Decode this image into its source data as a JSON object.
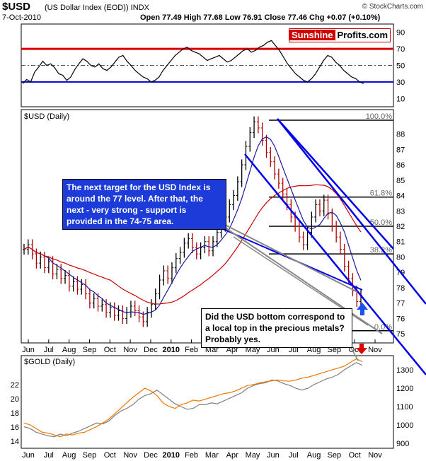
{
  "header": {
    "ticker": "$USD",
    "name": "(US Dollar Index (EOD)) INDX",
    "date": "7-Oct-2010",
    "ohlc": "Open 77.49  High 77.68  Low 76.91  Close 77.46  Chg +0.07 (+0.10%)",
    "credit": "© StockCharts.com"
  },
  "logo": {
    "part1": "Sunshine",
    "part2": "Profits.com"
  },
  "annotations": {
    "target": "The next target for the USD Index is around the 77 level. After that, the next - very strong - support is provided in the 74-75 area.",
    "question": "Did the USD bottom correspond to a local top in the precious metals? Probably yes."
  },
  "colors": {
    "price_bars": "#000000",
    "down_bars": "#b00000",
    "ma50": "#1a1aa0",
    "ma200": "#cc0000",
    "channel": "#0000ee",
    "gold": "#808080",
    "silver_ratio": "#ee7700",
    "rsi_upper": "#dd0000",
    "rsi_lower": "#0000cc",
    "arrow_up": "#1a4ff0",
    "arrow_down": "#dd0000"
  },
  "chart_data": [
    {
      "panel": "rsi",
      "type": "line",
      "title": "",
      "ylim": [
        0,
        100
      ],
      "y_ticks": [
        "90",
        "70",
        "50",
        "30",
        "10"
      ],
      "reference_lines": [
        70,
        50,
        30
      ],
      "values": [
        28,
        33,
        30,
        42,
        48,
        55,
        50,
        52,
        47,
        40,
        38,
        32,
        36,
        45,
        52,
        58,
        55,
        50,
        48,
        52,
        46,
        44,
        48,
        54,
        60,
        62,
        55,
        50,
        44,
        40,
        36,
        34,
        30,
        32,
        36,
        44,
        50,
        56,
        62,
        66,
        70,
        72,
        68,
        66,
        64,
        60,
        56,
        58,
        60,
        62,
        58,
        54,
        56,
        60,
        64,
        68,
        70,
        66,
        68,
        72,
        74,
        78,
        80,
        74,
        68,
        60,
        52,
        46,
        40,
        36,
        32,
        30,
        34,
        40,
        48,
        56,
        62,
        60,
        54,
        50,
        44,
        40,
        36,
        34,
        30,
        28
      ]
    },
    {
      "panel": "price",
      "type": "ohlc",
      "title": "$USD (Daily)",
      "ylim": [
        74.5,
        89.5
      ],
      "y_ticks": [
        "88",
        "87",
        "86",
        "85",
        "84",
        "83",
        "82",
        "81",
        "80",
        "79",
        "78",
        "77",
        "76",
        "75"
      ],
      "x_ticks": [
        "Jun",
        "Jul",
        "Aug",
        "Sep",
        "Oct",
        "Nov",
        "Dec",
        "2010",
        "Feb",
        "Mar",
        "Apr",
        "May",
        "Jun",
        "Jul",
        "Aug",
        "Sep",
        "Oct",
        "Nov"
      ],
      "fib_levels": [
        {
          "label": "100.0%",
          "value": 88.9
        },
        {
          "label": "61.8%",
          "value": 83.9
        },
        {
          "label": "50.0%",
          "value": 82.0
        },
        {
          "label": "38.2%",
          "value": 80.2
        },
        {
          "label": "0.0%",
          "value": 75.2
        }
      ],
      "close": [
        80.5,
        80.8,
        80.2,
        79.6,
        80.0,
        79.3,
        79.7,
        78.9,
        79.2,
        78.6,
        78.8,
        78.1,
        78.4,
        77.9,
        78.2,
        77.6,
        77.0,
        77.3,
        76.8,
        76.9,
        76.4,
        76.7,
        76.2,
        76.5,
        76.0,
        76.4,
        76.8,
        76.5,
        76.1,
        75.8,
        76.4,
        76.9,
        77.6,
        78.5,
        79.1,
        78.6,
        79.3,
        79.9,
        80.3,
        80.9,
        81.2,
        80.6,
        80.2,
        80.6,
        81.0,
        80.4,
        81.0,
        81.6,
        82.0,
        82.6,
        83.4,
        84.0,
        84.9,
        86.0,
        87.2,
        88.1,
        88.8,
        88.4,
        87.6,
        86.8,
        86.2,
        85.4,
        84.8,
        84.1,
        83.4,
        82.6,
        82.0,
        81.3,
        80.8,
        81.6,
        82.6,
        83.4,
        83.0,
        83.7,
        82.8,
        82.0,
        81.3,
        80.5,
        79.4,
        78.6,
        77.8,
        77.1,
        77.5
      ]
    },
    {
      "panel": "gold",
      "type": "line",
      "title": "$GOLD (Daily)",
      "ylim": [
        880,
        1370
      ],
      "y_ticks": [
        "1300",
        "1200",
        "1100",
        "1000",
        "900"
      ],
      "y_ticks_left": [
        "22",
        "20",
        "18",
        "16",
        "14"
      ],
      "x_ticks": [
        "Jun",
        "Jul",
        "Aug",
        "Sep",
        "Oct",
        "Nov",
        "Dec",
        "2010",
        "Feb",
        "Mar",
        "Apr",
        "May",
        "Jun",
        "Jul",
        "Aug",
        "Sep",
        "Oct",
        "Nov"
      ],
      "series": [
        {
          "values": [
            990,
            980,
            960,
            950,
            940,
            935,
            950,
            940,
            955,
            965,
            980,
            995,
            1010,
            1005,
            1020,
            1050,
            1075,
            1090,
            1110,
            1140,
            1160,
            1170,
            1190,
            1165,
            1140,
            1115,
            1100,
            1085,
            1090,
            1110,
            1110,
            1120,
            1115,
            1130,
            1145,
            1160,
            1175,
            1200,
            1215,
            1225,
            1230,
            1245,
            1240,
            1225,
            1215,
            1200,
            1190,
            1200,
            1220,
            1235,
            1250,
            1260,
            1275,
            1300,
            1320,
            1340,
            1325
          ]
        },
        {
          "values": [
            1010,
            1000,
            980,
            960,
            955,
            945,
            935,
            950,
            945,
            955,
            960,
            975,
            990,
            1010,
            1030,
            1060,
            1090,
            1120,
            1150,
            1175,
            1200,
            1185,
            1160,
            1120,
            1100,
            1090,
            1110,
            1120,
            1135,
            1130,
            1140,
            1150,
            1160,
            1170,
            1175,
            1185,
            1200,
            1215,
            1220,
            1230,
            1235,
            1240,
            1245,
            1240,
            1238,
            1245,
            1255,
            1260,
            1270,
            1280,
            1290,
            1300,
            1310,
            1320,
            1340,
            1360,
            1345
          ]
        }
      ]
    }
  ]
}
